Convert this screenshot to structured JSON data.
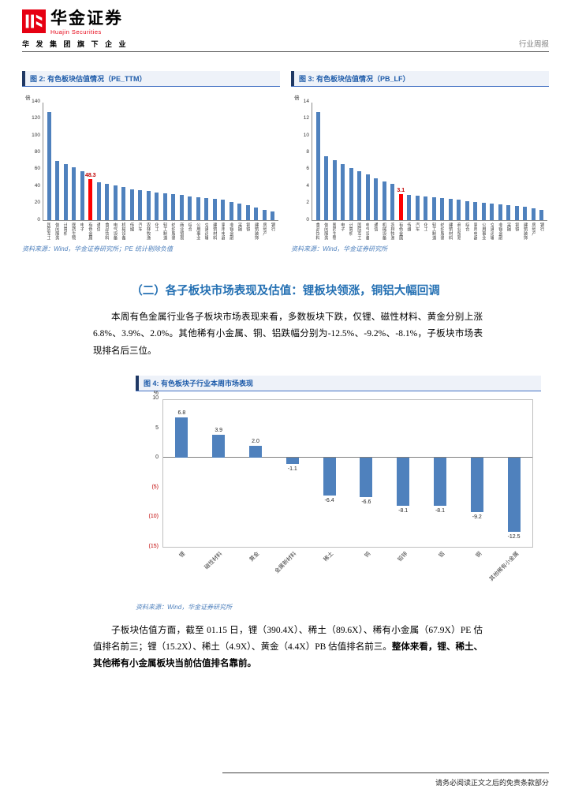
{
  "header": {
    "brand_cn": "华金证券",
    "brand_en": "Huajin Securities",
    "tagline": "华 发 集 团 旗 下 企 业",
    "report_type": "行业周报"
  },
  "charts": {
    "fig2": {
      "caption": "图 2: 有色板块估值情况（PE_TTM）",
      "source": "资料来源：Wind，华金证券研究所；PE 统计剔除负值"
    },
    "fig3": {
      "caption": "图 3: 有色板块估值情况（PB_LF）",
      "source": "资料来源：Wind，华金证券研究所"
    },
    "fig4": {
      "caption": "图 4: 有色板块子行业本周市场表现",
      "source": "资料来源：Wind，华金证券研究所"
    }
  },
  "section": {
    "heading": "（二）各子板块市场表现及估值：锂板块领涨，铜铝大幅回调",
    "para1": "本周有色金属行业各子板块市场表现来看，多数板块下跌，仅锂、磁性材料、黄金分别上涨 6.8%、3.9%、2.0%。其他稀有小金属、铜、铝跌幅分别为-12.5%、-9.2%、-8.1%，子板块市场表现排名后三位。",
    "para2_normal": "子板块估值方面，截至 01.15 日，锂（390.4X）、稀土（89.6X）、稀有小金属（67.9X）PE 估值排名前三；锂（15.2X）、稀土（4.9X）、黄金（4.4X）PB 估值排名前三。",
    "para2_bold": "整体来看，锂、稀土、其他稀有小金属板块当前估值排名靠前。"
  },
  "footer": {
    "disclaimer": "请务必阅读正文之后的免责条款部分"
  },
  "colors": {
    "bar_blue": "#4f81bd",
    "highlight_red": "#ff0000",
    "caption_blue": "#1f5caa",
    "brand_red": "#e60012"
  },
  "chart_data": [
    {
      "type": "bar",
      "title": "有色板块估值情况（PE_TTM）",
      "xlabel": "",
      "ylabel": "倍",
      "ylim": [
        0,
        140
      ],
      "yticks": [
        0,
        20,
        40,
        60,
        80,
        100,
        120,
        140
      ],
      "grid": false,
      "legend": "none",
      "categories": [
        "国防军工",
        "休闲服务",
        "计算机",
        "医药生物",
        "电子",
        "有色金属",
        "通信",
        "食品饮料",
        "电气设备",
        "机械设备",
        "传媒",
        "汽车",
        "农林牧渔",
        "化工",
        "轻工制造",
        "纺织服装",
        "商业贸易",
        "综合",
        "公用事业",
        "交通运输",
        "建筑材料",
        "家用电器",
        "非银金融",
        "采掘",
        "钢铁",
        "建筑装饰",
        "房地产",
        "银行"
      ],
      "values": [
        128,
        70,
        66,
        63,
        58,
        48.3,
        45,
        43,
        41,
        39,
        37,
        36,
        35,
        33,
        32,
        31,
        30,
        28,
        27,
        26,
        25,
        24,
        22,
        20,
        18,
        15,
        12,
        10
      ],
      "highlight": {
        "index": 5,
        "label": "48.3",
        "color": "#ff0000"
      },
      "bar_color": "#4f81bd"
    },
    {
      "type": "bar",
      "title": "有色板块估值情况（PB_LF）",
      "xlabel": "",
      "ylabel": "倍",
      "ylim": [
        0,
        14
      ],
      "yticks": [
        0,
        2,
        4,
        6,
        8,
        10,
        12,
        14
      ],
      "grid": false,
      "legend": "none",
      "categories": [
        "食品饮料",
        "休闲服务",
        "医药生物",
        "电子",
        "计算机",
        "国防军工",
        "电气设备",
        "通信",
        "机械设备",
        "农林牧渔",
        "有色金属",
        "传媒",
        "汽车",
        "化工",
        "轻工制造",
        "纺织服装",
        "建筑材料",
        "商业贸易",
        "综合",
        "家用电器",
        "公用事业",
        "交通运输",
        "非银金融",
        "采掘",
        "钢铁",
        "建筑装饰",
        "房地产",
        "银行"
      ],
      "values": [
        12.8,
        7.6,
        7.1,
        6.6,
        6.2,
        5.8,
        5.4,
        5.0,
        4.6,
        4.3,
        3.1,
        3.0,
        2.9,
        2.8,
        2.7,
        2.6,
        2.5,
        2.4,
        2.3,
        2.2,
        2.1,
        2.0,
        1.9,
        1.8,
        1.7,
        1.6,
        1.4,
        1.2
      ],
      "highlight": {
        "index": 10,
        "label": "3.1",
        "color": "#ff0000"
      },
      "bar_color": "#4f81bd"
    },
    {
      "type": "bar",
      "title": "有色板块子行业本周市场表现",
      "xlabel": "",
      "ylabel": "%",
      "ylim": [
        -15,
        10
      ],
      "yticks": [
        {
          "label": "10",
          "value": 10
        },
        {
          "label": "5",
          "value": 5
        },
        {
          "label": "0",
          "value": 0
        },
        {
          "label": "(5)",
          "value": -5
        },
        {
          "label": "(10)",
          "value": -10
        },
        {
          "label": "(15)",
          "value": -15
        }
      ],
      "grid": false,
      "legend": "none",
      "categories": [
        "锂",
        "磁性材料",
        "黄金",
        "金属新材料",
        "稀土",
        "钨",
        "铅锌",
        "铝",
        "铜",
        "其他稀有小金属"
      ],
      "values": [
        6.8,
        3.9,
        2.0,
        -1.1,
        -6.4,
        -6.6,
        -8.1,
        -8.1,
        -9.2,
        -12.5
      ],
      "bar_color": "#4f81bd"
    }
  ]
}
